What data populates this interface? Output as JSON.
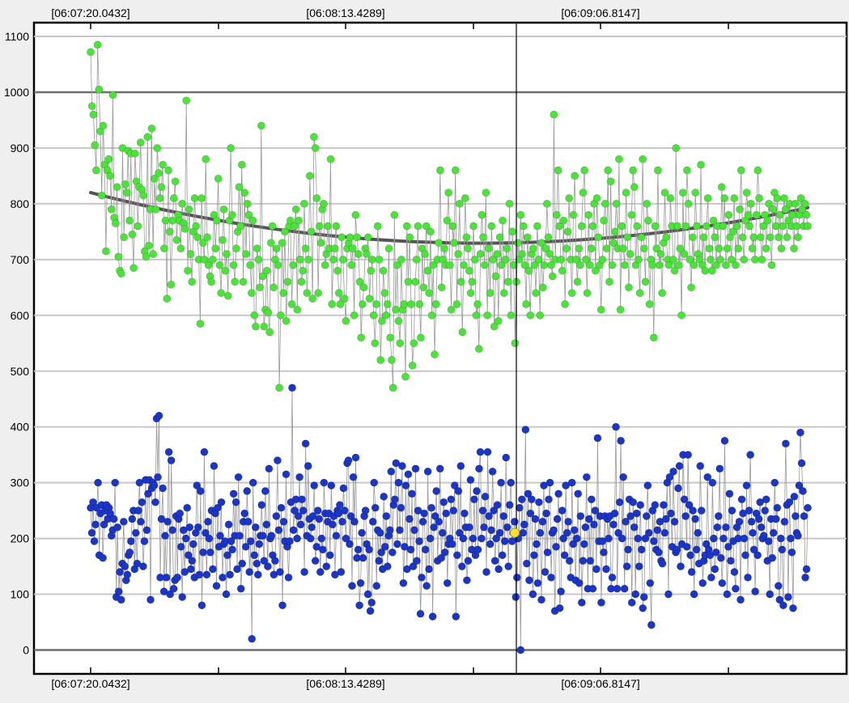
{
  "chart_data": {
    "type": "scatter",
    "title": "",
    "xlabel": "",
    "ylabel": "",
    "ylim": [
      -40,
      1120
    ],
    "x_tick_labels": [
      "[06:07:20.0432]",
      "[06:08:13.4289]",
      "[06:09:06.8147]"
    ],
    "y_ticks": [
      0,
      100,
      200,
      300,
      400,
      500,
      600,
      700,
      800,
      900,
      1000,
      1100
    ],
    "grid": true,
    "legend": "none",
    "cursor_time": "[06:08:48]",
    "series": [
      {
        "color": "#4be33a",
        "connect_points": true,
        "trend_curve": [
          820,
          730,
          793
        ],
        "values": [
          1072,
          975,
          960,
          905,
          860,
          1085,
          1005,
          930,
          815,
          940,
          870,
          715,
          860,
          880,
          850,
          790,
          995,
          775,
          765,
          830,
          705,
          680,
          675,
          900,
          740,
          835,
          820,
          895,
          770,
          890,
          745,
          685,
          890,
          840,
          760,
          830,
          910,
          825,
          815,
          715,
          705,
          920,
          725,
          790,
          935,
          710,
          845,
          790,
          900,
          855,
          810,
          830,
          870,
          720,
          770,
          630,
          860,
          750,
          655,
          770,
          810,
          840,
          735,
          780,
          770,
          720,
          800,
          765,
          755,
          985,
          680,
          790,
          710,
          660,
          750,
          810,
          760,
          740,
          700,
          585,
          810,
          730,
          700,
          880,
          740,
          690,
          670,
          660,
          700,
          780,
          720,
          770,
          845,
          690,
          640,
          735,
          790,
          680,
          710,
          635,
          770,
          900,
          780,
          690,
          660,
          720,
          750,
          830,
          760,
          870,
          660,
          820,
          710,
          800,
          780,
          690,
          640,
          770,
          600,
          580,
          720,
          700,
          650,
          940,
          670,
          580,
          610,
          680,
          605,
          570,
          730,
          760,
          650,
          700,
          720,
          690,
          470,
          600,
          730,
          640,
          750,
          590,
          660,
          760,
          770,
          620,
          690,
          760,
          790,
          610,
          770,
          700,
          660,
          680,
          800,
          720,
          640,
          700,
          850,
          750,
          630,
          920,
          900,
          810,
          640,
          760,
          730,
          790,
          800,
          690,
          710,
          760,
          720,
          880,
          620,
          700,
          720,
          760,
          680,
          640,
          620,
          740,
          700,
          630,
          590,
          720,
          730,
          740,
          690,
          720,
          600,
          780,
          740,
          710,
          660,
          560,
          620,
          650,
          720,
          710,
          740,
          630,
          680,
          700,
          600,
          550,
          620,
          760,
          700,
          520,
          590,
          680,
          640,
          600,
          620,
          720,
          560,
          520,
          470,
          780,
          610,
          690,
          590,
          550,
          700,
          610,
          620,
          490,
          760,
          660,
          740,
          620,
          510,
          550,
          660,
          700,
          760,
          620,
          560,
          720,
          650,
          710,
          760,
          680,
          640,
          750,
          600,
          690,
          530,
          620,
          700,
          730,
          860,
          650,
          700,
          720,
          690,
          770,
          820,
          690,
          610,
          760,
          730,
          860,
          620,
          710,
          800,
          660,
          570,
          690,
          810,
          740,
          720,
          680,
          640,
          660,
          760,
          700,
          600,
          620,
          540,
          710,
          780,
          740,
          690,
          820,
          600,
          720,
          640,
          760,
          700,
          580,
          670,
          710,
          590,
          740,
          690,
          770,
          640,
          700,
          720,
          660,
          800,
          600,
          750,
          690,
          550,
          660,
          730,
          700,
          780,
          710,
          760,
          690,
          620,
          740,
          680,
          600,
          710,
          720,
          690,
          640,
          760,
          700,
          600,
          730,
          650,
          690,
          720,
          800,
          740,
          710,
          690,
          670,
          960,
          700,
          780,
          860,
          760,
          700,
          680,
          770,
          620,
          720,
          750,
          810,
          700,
          640,
          780,
          850,
          700,
          660,
          720,
          690,
          760,
          820,
          860,
          700,
          640,
          780,
          690,
          720,
          760,
          800,
          680,
          810,
          740,
          690,
          610,
          700,
          770,
          800,
          720,
          860,
          660,
          840,
          690,
          730,
          750,
          800,
          720,
          880,
          610,
          760,
          720,
          690,
          820,
          740,
          650,
          710,
          780,
          860,
          830,
          690,
          760,
          700,
          640,
          740,
          880,
          720,
          660,
          800,
          770,
          620,
          700,
          690,
          560,
          760,
          720,
          860,
          690,
          710,
          640,
          730,
          820,
          740,
          700,
          690,
          810,
          760,
          700,
          680,
          900,
          760,
          690,
          720,
          600,
          820,
          710,
          760,
          860,
          800,
          700,
          650,
          740,
          690,
          820,
          760,
          710,
          700,
          870,
          690,
          740,
          680,
          760,
          810,
          720,
          700,
          680,
          770,
          740,
          690,
          760,
          720,
          700,
          830,
          760,
          810,
          690,
          720,
          780,
          740,
          700,
          750,
          810,
          690,
          760,
          720,
          790,
          860,
          740,
          700,
          770,
          820,
          780,
          760,
          800,
          720,
          740,
          700,
          780,
          860,
          810,
          740,
          700,
          760,
          780,
          720,
          770,
          800,
          740,
          690,
          790,
          820,
          760,
          810,
          740,
          780,
          720,
          760,
          810,
          790,
          740,
          770,
          800,
          760,
          780,
          720,
          800,
          760,
          740,
          780,
          810,
          790,
          760,
          800,
          780,
          760
        ]
      },
      {
        "color": "#1a35c8",
        "connect_points": true,
        "values": [
          255,
          210,
          265,
          195,
          225,
          255,
          300,
          170,
          245,
          260,
          165,
          225,
          250,
          260,
          235,
          255,
          245,
          205,
          215,
          235,
          300,
          95,
          220,
          105,
          140,
          90,
          155,
          230,
          150,
          125,
          135,
          170,
          175,
          195,
          235,
          250,
          145,
          210,
          155,
          250,
          300,
          230,
          265,
          150,
          195,
          305,
          215,
          280,
          305,
          90,
          290,
          300,
          295,
          265,
          415,
          310,
          420,
          130,
          235,
          290,
          105,
          205,
          130,
          230,
          355,
          100,
          340,
          215,
          110,
          125,
          240,
          130,
          235,
          245,
          185,
          95,
          215,
          140,
          200,
          255,
          170,
          220,
          145,
          160,
          190,
          130,
          210,
          295,
          220,
          135,
          285,
          80,
          175,
          355,
          210,
          135,
          230,
          200,
          175,
          250,
          145,
          330,
          245,
          115,
          255,
          185,
          205,
          265,
          130,
          190,
          195,
          100,
          170,
          225,
          135,
          195,
          180,
          280,
          205,
          265,
          145,
          310,
          205,
          110,
          155,
          230,
          245,
          185,
          285,
          230,
          140,
          195,
          20,
          300,
          170,
          220,
          155,
          135,
          190,
          205,
          260,
          205,
          160,
          285,
          225,
          150,
          325,
          200,
          205,
          170,
          135,
          160,
          240,
          340,
          215,
          140,
          255,
          80,
          230,
          195,
          315,
          185,
          130,
          195,
          265,
          470,
          215,
          250,
          270,
          200,
          240,
          310,
          225,
          270,
          250,
          140,
          370,
          205,
          330,
          235,
          200,
          220,
          240,
          295,
          160,
          185,
          250,
          235,
          140,
          200,
          180,
          300,
          245,
          150,
          230,
          245,
          170,
          295,
          225,
          240,
          135,
          205,
          250,
          245,
          260,
          140,
          230,
          290,
          250,
          200,
          335,
          340,
          190,
          240,
          115,
          310,
          230,
          345,
          165,
          180,
          80,
          120,
          210,
          165,
          240,
          250,
          190,
          100,
          180,
          70,
          85,
          230,
          300,
          255,
          115,
          215,
          160,
          210,
          175,
          145,
          275,
          185,
          240,
          150,
          205,
          215,
          320,
          175,
          260,
          270,
          335,
          190,
          300,
          215,
          255,
          330,
          120,
          185,
          295,
          145,
          315,
          235,
          180,
          280,
          150,
          215,
          325,
          160,
          250,
          195,
          65,
          130,
          230,
          245,
          180,
          115,
          320,
          145,
          200,
          255,
          60,
          220,
          240,
          285,
          160,
          230,
          325,
          165,
          210,
          265,
          175,
          245,
          120,
          190,
          200,
          270,
          190,
          250,
          295,
          60,
          170,
          285,
          210,
          330,
          150,
          200,
          245,
          220,
          125,
          160,
          220,
          305,
          180,
          200,
          270,
          170,
          285,
          180,
          325,
          355,
          200,
          250,
          220,
          275,
          140,
          355,
          240,
          190,
          215,
          320,
          250,
          160,
          200,
          260,
          145,
          210,
          300,
          170,
          240,
          195,
          345,
          220,
          150,
          260,
          300,
          195,
          210,
          230,
          95,
          130,
          200,
          255,
          0,
          270,
          210,
          225,
          395,
          155,
          280,
          125,
          245,
          270,
          100,
          170,
          235,
          190,
          120,
          265,
          210,
          90,
          230,
          295,
          140,
          245,
          175,
          270,
          300,
          130,
          210,
          215,
          70,
          185,
          235,
          280,
          75,
          105,
          250,
          200,
          170,
          295,
          210,
          230,
          160,
          130,
          300,
          190,
          215,
          125,
          200,
          280,
          120,
          240,
          85,
          160,
          190,
          220,
          310,
          110,
          235,
          160,
          270,
          110,
          225,
          250,
          145,
          380,
          195,
          240,
          85,
          195,
          175,
          240,
          145,
          235,
          200,
          240,
          110,
          130,
          225,
          245,
          400,
          110,
          210,
          265,
          375,
          200,
          310,
          110,
          230,
          150,
          180,
          270,
          240,
          85,
          265,
          220,
          100,
          245,
          200,
          150,
          260,
          180,
          75,
          95,
          200,
          240,
          295,
          210,
          120,
          45,
          250,
          195,
          260,
          180,
          215,
          175,
          230,
          160,
          155,
          260,
          210,
          235,
          300,
          100,
          310,
          245,
          185,
          320,
          230,
          175,
          180,
          290,
          330,
          150,
          190,
          350,
          270,
          240,
          185,
          350,
          260,
          170,
          140,
          250,
          100,
          235,
          180,
          210,
          155,
          330,
          250,
          120,
          160,
          170,
          190,
          310,
          180,
          170,
          130,
          300,
          200,
          145,
          175,
          220,
          240,
          325,
          165,
          120,
          200,
          375,
          220,
          100,
          185,
          280,
          160,
          250,
          195,
          140,
          110,
          220,
          200,
          230,
          90,
          270,
          245,
          200,
          170,
          295,
          130,
          250,
          350,
          230,
          210,
          180,
          105,
          245,
          170,
          235,
          265,
          220,
          200,
          205,
          250,
          270,
          160,
          195,
          100,
          235,
          165,
          210,
          300,
          235,
          255,
          115,
          90,
          200,
          180,
          80,
          230,
          370,
          260,
          95,
          265,
          200,
          175,
          75,
          275,
          240,
          210,
          205,
          295,
          390,
          335,
          285,
          240,
          130,
          145,
          255
        ]
      }
    ],
    "highlight_point": {
      "x": 0.7,
      "y": 210,
      "color": "#ffe033"
    }
  }
}
